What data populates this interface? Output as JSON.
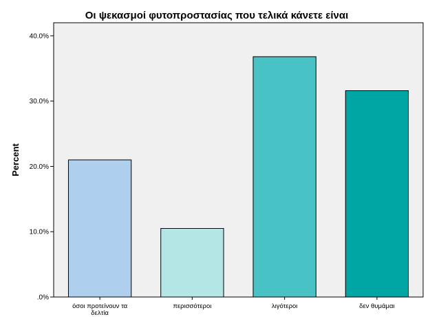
{
  "chart_data": {
    "type": "bar",
    "title": "Οι ψεκασμοί φυτοπροστασίας που τελικά κάνετε είναι",
    "xlabel": "",
    "ylabel": "Percent",
    "ylim": [
      0,
      42
    ],
    "yticks": [
      0,
      10,
      20,
      30,
      40
    ],
    "ytick_labels": [
      ".0%",
      "10.0%",
      "20.0%",
      "30.0%",
      "40.0%"
    ],
    "grid": false,
    "legend": "none",
    "categories": [
      [
        "όσοι προτείνουν τα",
        "δελτία"
      ],
      [
        "περισσότεροι"
      ],
      [
        "λιγότεροι"
      ],
      [
        "δεν θυμάμαι"
      ]
    ],
    "values": [
      21.0,
      10.5,
      36.8,
      31.6
    ],
    "bar_colors": [
      "#aecfee",
      "#b4e6e6",
      "#48c2c4",
      "#00a6a4"
    ],
    "plot_background": "#f0f0f0"
  }
}
